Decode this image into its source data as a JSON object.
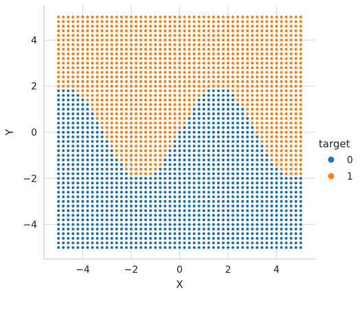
{
  "chart_data": {
    "type": "scatter",
    "title": "",
    "xlabel": "X",
    "ylabel": "Y",
    "xlim": [
      -5.6,
      5.6
    ],
    "ylim": [
      -5.5,
      5.5
    ],
    "xticks": [
      -4,
      -2,
      0,
      2,
      4
    ],
    "xtick_labels": [
      "−4",
      "−2",
      "0",
      "2",
      "4"
    ],
    "yticks": [
      -4,
      -2,
      0,
      2,
      4
    ],
    "ytick_labels": [
      "−4",
      "−2",
      "0",
      "2",
      "4"
    ],
    "grid": true,
    "grid_spacing": 0.2,
    "x_range": [
      -5,
      5
    ],
    "y_range": [
      -5,
      5
    ],
    "rule": "target = 1 when Y > 2*sin(X), else 0",
    "legend": {
      "title": "target",
      "placement": "right",
      "entries": [
        {
          "label": "0",
          "color": "#1f77b4"
        },
        {
          "label": "1",
          "color": "#ff7f0e"
        }
      ]
    }
  }
}
